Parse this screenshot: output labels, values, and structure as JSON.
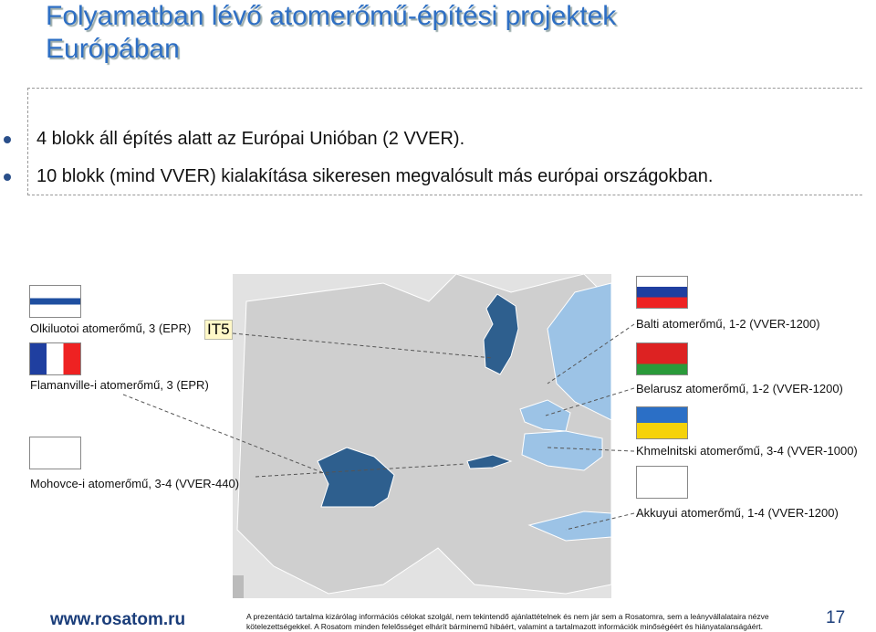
{
  "title": "Folyamatban lévő atomerőmű-építési projektek Európában",
  "bullets": [
    "4 blokk áll építés alatt az Európai Unióban (2 VVER).",
    "10 blokk (mind VVER) kialakítása sikeresen megvalósult más európai országokban."
  ],
  "projects_left": [
    "Olkiluotoi atomerőmű, 3 (EPR)",
    "Flamanville-i atomerőmű, 3 (EPR)",
    "Mohovce-i atomerőmű, 3-4 (VVER-440)"
  ],
  "projects_right": [
    "Balti atomerőmű, 1-2 (VVER-1200)",
    "Belarusz atomerőmű, 1-2 (VVER-1200)",
    "Khmelnitski atomerőmű, 3-4 (VVER-1000)",
    "Akkuyui atomerőmű, 1-4 (VVER-1200)"
  ],
  "tag": "IT5",
  "footer": {
    "url": "www.rosatom.ru",
    "disclaimer": "A prezentáció tartalma kizárólag információs célokat szolgál, nem tekintendő ajánlattételnek és nem jár sem a Rosatomra, sem a leányvállalataira nézve kötelezettségekkel. A Rosatom minden felelősséget elhárít bárminemű hibáért, valamint a tartalmazott információk minőségéért és hiányatalanságáért.",
    "page": 17
  }
}
